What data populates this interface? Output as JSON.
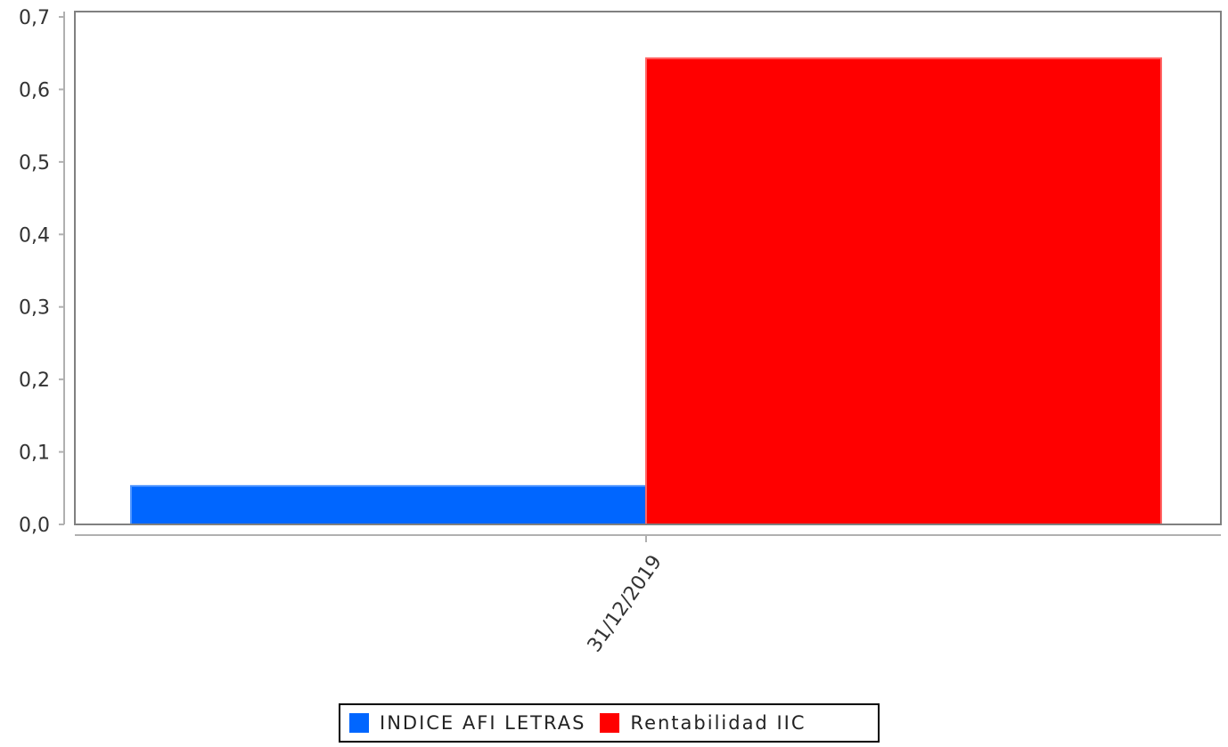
{
  "chart_data": {
    "type": "bar",
    "categories": [
      "31/12/2019"
    ],
    "series": [
      {
        "name": "INDICE AFI LETRAS",
        "values": [
          0.053
        ],
        "color": "#0066FF"
      },
      {
        "name": "Rentabilidad IIC",
        "values": [
          0.643
        ],
        "color": "#FF0000"
      }
    ],
    "ylim": [
      0,
      0.7
    ],
    "yticks": [
      "0,0",
      "0,1",
      "0,2",
      "0,3",
      "0,4",
      "0,5",
      "0,6",
      "0,7"
    ],
    "grid": false,
    "legend_position": "bottom"
  }
}
